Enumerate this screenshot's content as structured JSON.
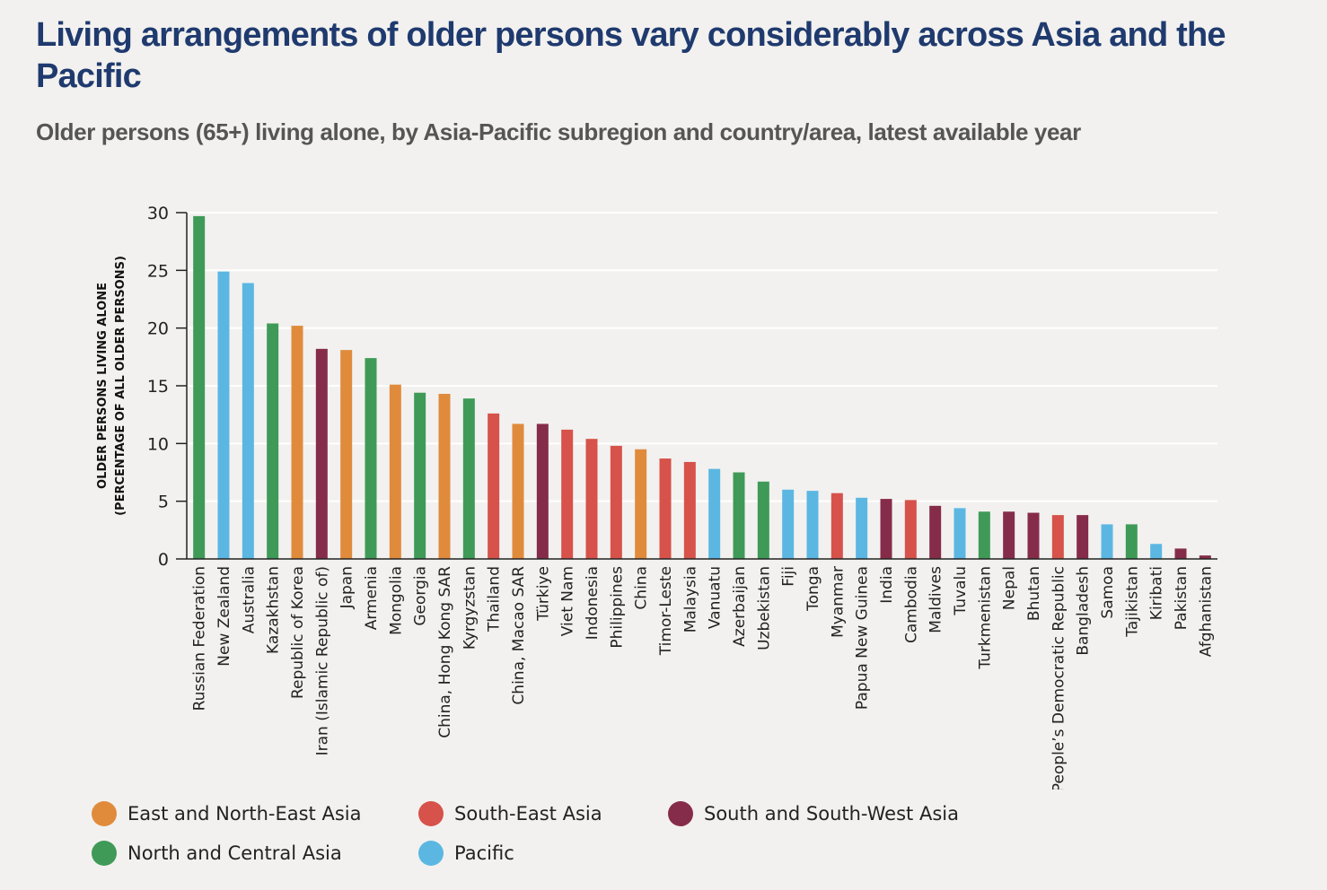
{
  "header": {
    "title": "Living arrangements of older persons vary considerably across Asia and the Pacific",
    "subtitle": "Older persons (65+) living alone, by Asia-Pacific subregion and country/area, latest available year"
  },
  "chart_data": {
    "type": "bar",
    "ylabel_line1": "OLDER PERSONS LIVING ALONE",
    "ylabel_line2": "(PERCENTAGE OF ALL OLDER PERSONS)",
    "xlabel": "",
    "ylim": [
      0,
      30
    ],
    "yticks": [
      0,
      5,
      10,
      15,
      20,
      25,
      30
    ],
    "grid": true,
    "legend_position": "bottom-left",
    "subregions": [
      {
        "key": "enea",
        "name": "East and North-East Asia",
        "color": "#e08b3c"
      },
      {
        "key": "sea",
        "name": "South-East Asia",
        "color": "#d6524a"
      },
      {
        "key": "sswa",
        "name": "South and South-West Asia",
        "color": "#862c4b"
      },
      {
        "key": "nca",
        "name": "North and Central Asia",
        "color": "#3f9a58"
      },
      {
        "key": "pac",
        "name": "Pacific",
        "color": "#5bb7e2"
      }
    ],
    "bars": [
      {
        "category": "Russian Federation",
        "value": 29.7,
        "subregion": "nca"
      },
      {
        "category": "New Zealand",
        "value": 24.9,
        "subregion": "pac"
      },
      {
        "category": "Australia",
        "value": 23.9,
        "subregion": "pac"
      },
      {
        "category": "Kazakhstan",
        "value": 20.4,
        "subregion": "nca"
      },
      {
        "category": "Republic of Korea",
        "value": 20.2,
        "subregion": "enea"
      },
      {
        "category": "Iran (Islamic Republic of)",
        "value": 18.2,
        "subregion": "sswa"
      },
      {
        "category": "Japan",
        "value": 18.1,
        "subregion": "enea"
      },
      {
        "category": "Armenia",
        "value": 17.4,
        "subregion": "nca"
      },
      {
        "category": "Mongolia",
        "value": 15.1,
        "subregion": "enea"
      },
      {
        "category": "Georgia",
        "value": 14.4,
        "subregion": "nca"
      },
      {
        "category": "China, Hong Kong SAR",
        "value": 14.3,
        "subregion": "enea"
      },
      {
        "category": "Kyrgyzstan",
        "value": 13.9,
        "subregion": "nca"
      },
      {
        "category": "Thailand",
        "value": 12.6,
        "subregion": "sea"
      },
      {
        "category": "China, Macao SAR",
        "value": 11.7,
        "subregion": "enea"
      },
      {
        "category": "Türkiye",
        "value": 11.7,
        "subregion": "sswa"
      },
      {
        "category": "Viet Nam",
        "value": 11.2,
        "subregion": "sea"
      },
      {
        "category": "Indonesia",
        "value": 10.4,
        "subregion": "sea"
      },
      {
        "category": "Philippines",
        "value": 9.8,
        "subregion": "sea"
      },
      {
        "category": "China",
        "value": 9.5,
        "subregion": "enea"
      },
      {
        "category": "Timor-Leste",
        "value": 8.7,
        "subregion": "sea"
      },
      {
        "category": "Malaysia",
        "value": 8.4,
        "subregion": "sea"
      },
      {
        "category": "Vanuatu",
        "value": 7.8,
        "subregion": "pac"
      },
      {
        "category": "Azerbaijan",
        "value": 7.5,
        "subregion": "nca"
      },
      {
        "category": "Uzbekistan",
        "value": 6.7,
        "subregion": "nca"
      },
      {
        "category": "Fiji",
        "value": 6.0,
        "subregion": "pac"
      },
      {
        "category": "Tonga",
        "value": 5.9,
        "subregion": "pac"
      },
      {
        "category": "Myanmar",
        "value": 5.7,
        "subregion": "sea"
      },
      {
        "category": "Papua New Guinea",
        "value": 5.3,
        "subregion": "pac"
      },
      {
        "category": "India",
        "value": 5.2,
        "subregion": "sswa"
      },
      {
        "category": "Cambodia",
        "value": 5.1,
        "subregion": "sea"
      },
      {
        "category": "Maldives",
        "value": 4.6,
        "subregion": "sswa"
      },
      {
        "category": "Tuvalu",
        "value": 4.4,
        "subregion": "pac"
      },
      {
        "category": "Turkmenistan",
        "value": 4.1,
        "subregion": "nca"
      },
      {
        "category": "Nepal",
        "value": 4.1,
        "subregion": "sswa"
      },
      {
        "category": "Bhutan",
        "value": 4.0,
        "subregion": "sswa"
      },
      {
        "category": "Lao People’s Democratic Republic",
        "value": 3.8,
        "subregion": "sea"
      },
      {
        "category": "Bangladesh",
        "value": 3.8,
        "subregion": "sswa"
      },
      {
        "category": "Samoa",
        "value": 3.0,
        "subregion": "pac"
      },
      {
        "category": "Tajikistan",
        "value": 3.0,
        "subregion": "nca"
      },
      {
        "category": "Kiribati",
        "value": 1.3,
        "subregion": "pac"
      },
      {
        "category": "Pakistan",
        "value": 0.9,
        "subregion": "sswa"
      },
      {
        "category": "Afghanistan",
        "value": 0.3,
        "subregion": "sswa"
      }
    ]
  }
}
